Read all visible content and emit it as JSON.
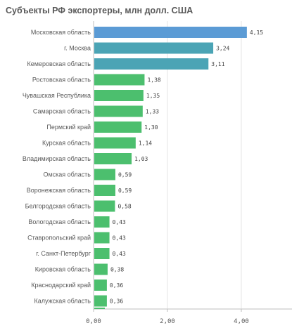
{
  "chart_data": {
    "type": "bar",
    "orientation": "horizontal",
    "title": "Субъекты РФ экспортеры, млн долл. США",
    "categories": [
      "Московская область",
      "г. Москва",
      "Кемеровская область",
      "Ростовская область",
      "Чувашская Республика",
      "Самарская область",
      "Пермский край",
      "Курская область",
      "Владимирская область",
      "Омская область",
      "Воронежская область",
      "Белгородская область",
      "Вологодская область",
      "Ставропольский край",
      "г. Санкт-Петербург",
      "Кировская область",
      "Краснодарский край",
      "Калужская область"
    ],
    "values": [
      4.15,
      3.24,
      3.11,
      1.38,
      1.35,
      1.33,
      1.3,
      1.14,
      1.03,
      0.59,
      0.59,
      0.58,
      0.43,
      0.43,
      0.43,
      0.38,
      0.36,
      0.36
    ],
    "value_labels": [
      "4,15",
      "3,24",
      "3,11",
      "1,38",
      "1,35",
      "1,33",
      "1,30",
      "1,14",
      "1,03",
      "0,59",
      "0,59",
      "0,58",
      "0,43",
      "0,43",
      "0,43",
      "0,38",
      "0,36",
      "0,36"
    ],
    "xticks": [
      0,
      2,
      4
    ],
    "xtick_labels": [
      "0,00",
      "2,00",
      "4,00"
    ],
    "xlim": [
      0,
      5.3
    ],
    "grid": "vertical",
    "colors": {
      "top": "#5b9bd5",
      "second": "#4ba4b5",
      "rest": "#4cbf6e"
    }
  }
}
